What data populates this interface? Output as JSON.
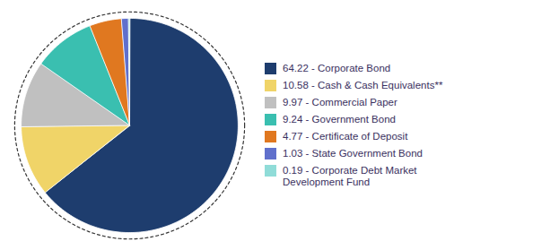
{
  "chart_data": {
    "type": "pie",
    "categories": [
      "64.22 - Corporate Bond",
      "10.58 - Cash & Cash Equivalents**",
      "9.97 - Commercial Paper",
      "9.24 - Government Bond",
      "4.77 - Certificate of Deposit",
      "1.03 - State Government Bond",
      "0.19 - Corporate Debt Market\nDevelopment Fund"
    ],
    "values": [
      64.22,
      10.58,
      9.97,
      9.24,
      4.77,
      1.03,
      0.19
    ],
    "colors": [
      "#1e3d6e",
      "#f0d468",
      "#c0c0c0",
      "#3abfb0",
      "#e07820",
      "#6070cc",
      "#90dcd8"
    ],
    "legend": "right"
  }
}
